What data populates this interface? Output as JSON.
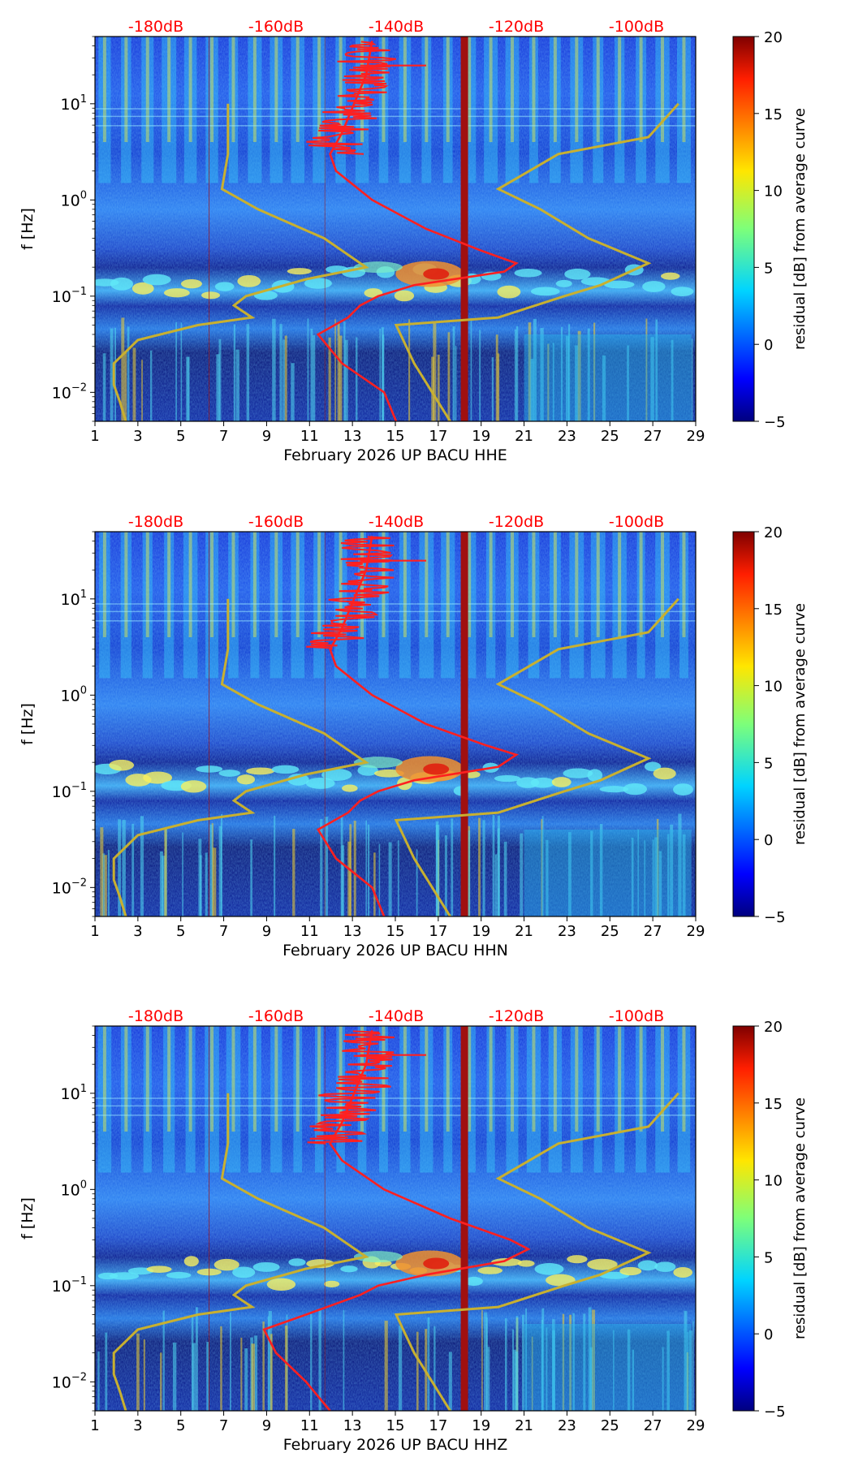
{
  "chart_data": [
    {
      "type": "heatmap",
      "title": "",
      "xlabel": "February 2026 UP BACU  HHE",
      "ylabel": "f [Hz]",
      "x_ticks": [
        "1",
        "3",
        "5",
        "7",
        "9",
        "11",
        "13",
        "15",
        "17",
        "19",
        "21",
        "23",
        "25",
        "27",
        "29"
      ],
      "x_range": [
        1,
        29
      ],
      "y_ticks": [
        {
          "value": 0.01,
          "base": "10",
          "exp": "−2"
        },
        {
          "value": 0.1,
          "base": "10",
          "exp": "−1"
        },
        {
          "value": 1,
          "base": "10",
          "exp": "0"
        },
        {
          "value": 10,
          "base": "10",
          "exp": "1"
        }
      ],
      "y_range": [
        0.005,
        50
      ],
      "y_scale": "log",
      "top_labels": [
        "-180dB",
        "-160dB",
        "-140dB",
        "-120dB",
        "-100dB"
      ],
      "colorbar": {
        "label": "residual [dB] from average curve",
        "ticks": [
          "−5",
          "0",
          "5",
          "10",
          "15",
          "20"
        ],
        "range": [
          -5,
          20
        ]
      },
      "gap_day": 18.2,
      "red_curve_psd": [
        {
          "f": 0.005,
          "db": -140
        },
        {
          "f": 0.01,
          "db": -142
        },
        {
          "f": 0.02,
          "db": -149
        },
        {
          "f": 0.04,
          "db": -153
        },
        {
          "f": 0.06,
          "db": -148
        },
        {
          "f": 0.08,
          "db": -146
        },
        {
          "f": 0.1,
          "db": -143
        },
        {
          "f": 0.13,
          "db": -137
        },
        {
          "f": 0.18,
          "db": -122
        },
        {
          "f": 0.22,
          "db": -120
        },
        {
          "f": 0.3,
          "db": -126
        },
        {
          "f": 0.5,
          "db": -135
        },
        {
          "f": 1,
          "db": -144
        },
        {
          "f": 2,
          "db": -150
        },
        {
          "f": 3,
          "db": -151
        },
        {
          "f": 5,
          "db": -149
        },
        {
          "f": 10,
          "db": -147
        },
        {
          "f": 20,
          "db": -145
        },
        {
          "f": 45,
          "db": -144
        }
      ],
      "yellow_curve_nlnm_nhnm": {
        "low": [
          {
            "f": 0.005,
            "db": -185
          },
          {
            "f": 0.008,
            "db": -186
          },
          {
            "f": 0.012,
            "db": -187
          },
          {
            "f": 0.02,
            "db": -187
          },
          {
            "f": 0.035,
            "db": -183
          },
          {
            "f": 0.05,
            "db": -173
          },
          {
            "f": 0.06,
            "db": -164
          },
          {
            "f": 0.08,
            "db": -167
          },
          {
            "f": 0.1,
            "db": -165
          },
          {
            "f": 0.15,
            "db": -155
          },
          {
            "f": 0.2,
            "db": -145
          },
          {
            "f": 0.4,
            "db": -152
          },
          {
            "f": 0.8,
            "db": -163
          },
          {
            "f": 1.3,
            "db": -169
          },
          {
            "f": 3,
            "db": -168
          },
          {
            "f": 10,
            "db": -168
          }
        ],
        "high": [
          {
            "f": 0.005,
            "db": -131
          },
          {
            "f": 0.01,
            "db": -134
          },
          {
            "f": 0.02,
            "db": -137
          },
          {
            "f": 0.05,
            "db": -140
          },
          {
            "f": 0.06,
            "db": -123
          },
          {
            "f": 0.1,
            "db": -112
          },
          {
            "f": 0.13,
            "db": -106
          },
          {
            "f": 0.22,
            "db": -98
          },
          {
            "f": 0.4,
            "db": -108
          },
          {
            "f": 0.8,
            "db": -116
          },
          {
            "f": 1.3,
            "db": -123
          },
          {
            "f": 3,
            "db": -113
          },
          {
            "f": 4.5,
            "db": -98
          },
          {
            "f": 10,
            "db": -93
          }
        ]
      }
    },
    {
      "type": "heatmap",
      "title": "",
      "xlabel": "February 2026 UP BACU  HHN",
      "ylabel": "f [Hz]",
      "x_ticks": [
        "1",
        "3",
        "5",
        "7",
        "9",
        "11",
        "13",
        "15",
        "17",
        "19",
        "21",
        "23",
        "25",
        "27",
        "29"
      ],
      "x_range": [
        1,
        29
      ],
      "y_ticks": [
        {
          "value": 0.01,
          "base": "10",
          "exp": "−2"
        },
        {
          "value": 0.1,
          "base": "10",
          "exp": "−1"
        },
        {
          "value": 1,
          "base": "10",
          "exp": "0"
        },
        {
          "value": 10,
          "base": "10",
          "exp": "1"
        }
      ],
      "y_range": [
        0.005,
        50
      ],
      "y_scale": "log",
      "top_labels": [
        "-180dB",
        "-160dB",
        "-140dB",
        "-120dB",
        "-100dB"
      ],
      "colorbar": {
        "label": "residual [dB] from average curve",
        "ticks": [
          "−5",
          "0",
          "5",
          "10",
          "15",
          "20"
        ],
        "range": [
          -5,
          20
        ]
      },
      "gap_day": 18.2,
      "red_curve_psd": [
        {
          "f": 0.005,
          "db": -142
        },
        {
          "f": 0.01,
          "db": -144
        },
        {
          "f": 0.02,
          "db": -150
        },
        {
          "f": 0.04,
          "db": -153
        },
        {
          "f": 0.06,
          "db": -148
        },
        {
          "f": 0.08,
          "db": -146
        },
        {
          "f": 0.1,
          "db": -143
        },
        {
          "f": 0.13,
          "db": -137
        },
        {
          "f": 0.18,
          "db": -123
        },
        {
          "f": 0.24,
          "db": -120
        },
        {
          "f": 0.3,
          "db": -125
        },
        {
          "f": 0.5,
          "db": -135
        },
        {
          "f": 1,
          "db": -144
        },
        {
          "f": 2,
          "db": -150
        },
        {
          "f": 3,
          "db": -151
        },
        {
          "f": 5,
          "db": -149
        },
        {
          "f": 10,
          "db": -147
        },
        {
          "f": 20,
          "db": -145
        },
        {
          "f": 45,
          "db": -144
        }
      ],
      "yellow_curve_nlnm_nhnm": {
        "low": [
          {
            "f": 0.005,
            "db": -185
          },
          {
            "f": 0.008,
            "db": -186
          },
          {
            "f": 0.012,
            "db": -187
          },
          {
            "f": 0.02,
            "db": -187
          },
          {
            "f": 0.035,
            "db": -183
          },
          {
            "f": 0.05,
            "db": -173
          },
          {
            "f": 0.06,
            "db": -164
          },
          {
            "f": 0.08,
            "db": -167
          },
          {
            "f": 0.1,
            "db": -165
          },
          {
            "f": 0.15,
            "db": -155
          },
          {
            "f": 0.2,
            "db": -145
          },
          {
            "f": 0.4,
            "db": -152
          },
          {
            "f": 0.8,
            "db": -163
          },
          {
            "f": 1.3,
            "db": -169
          },
          {
            "f": 3,
            "db": -168
          },
          {
            "f": 10,
            "db": -168
          }
        ],
        "high": [
          {
            "f": 0.005,
            "db": -131
          },
          {
            "f": 0.01,
            "db": -134
          },
          {
            "f": 0.02,
            "db": -137
          },
          {
            "f": 0.05,
            "db": -140
          },
          {
            "f": 0.06,
            "db": -123
          },
          {
            "f": 0.1,
            "db": -112
          },
          {
            "f": 0.13,
            "db": -106
          },
          {
            "f": 0.22,
            "db": -98
          },
          {
            "f": 0.4,
            "db": -108
          },
          {
            "f": 0.8,
            "db": -116
          },
          {
            "f": 1.3,
            "db": -123
          },
          {
            "f": 3,
            "db": -113
          },
          {
            "f": 4.5,
            "db": -98
          },
          {
            "f": 10,
            "db": -93
          }
        ]
      }
    },
    {
      "type": "heatmap",
      "title": "",
      "xlabel": "February 2026 UP BACU  HHZ",
      "ylabel": "f [Hz]",
      "x_ticks": [
        "1",
        "3",
        "5",
        "7",
        "9",
        "11",
        "13",
        "15",
        "17",
        "19",
        "21",
        "23",
        "25",
        "27",
        "29"
      ],
      "x_range": [
        1,
        29
      ],
      "y_ticks": [
        {
          "value": 0.01,
          "base": "10",
          "exp": "−2"
        },
        {
          "value": 0.1,
          "base": "10",
          "exp": "−1"
        },
        {
          "value": 1,
          "base": "10",
          "exp": "0"
        },
        {
          "value": 10,
          "base": "10",
          "exp": "1"
        }
      ],
      "y_range": [
        0.005,
        50
      ],
      "y_scale": "log",
      "top_labels": [
        "-180dB",
        "-160dB",
        "-140dB",
        "-120dB",
        "-100dB"
      ],
      "colorbar": {
        "label": "residual [dB] from average curve",
        "ticks": [
          "−5",
          "0",
          "5",
          "10",
          "15",
          "20"
        ],
        "range": [
          -5,
          20
        ]
      },
      "gap_day": 18.2,
      "red_curve_psd": [
        {
          "f": 0.005,
          "db": -151
        },
        {
          "f": 0.01,
          "db": -155
        },
        {
          "f": 0.02,
          "db": -160
        },
        {
          "f": 0.035,
          "db": -162
        },
        {
          "f": 0.05,
          "db": -155
        },
        {
          "f": 0.08,
          "db": -146
        },
        {
          "f": 0.1,
          "db": -143
        },
        {
          "f": 0.13,
          "db": -135
        },
        {
          "f": 0.18,
          "db": -122
        },
        {
          "f": 0.24,
          "db": -118
        },
        {
          "f": 0.3,
          "db": -121
        },
        {
          "f": 0.5,
          "db": -131
        },
        {
          "f": 1,
          "db": -142
        },
        {
          "f": 2,
          "db": -149
        },
        {
          "f": 3,
          "db": -151
        },
        {
          "f": 5,
          "db": -149
        },
        {
          "f": 10,
          "db": -147
        },
        {
          "f": 20,
          "db": -145
        },
        {
          "f": 45,
          "db": -144
        }
      ],
      "yellow_curve_nlnm_nhnm": {
        "low": [
          {
            "f": 0.005,
            "db": -185
          },
          {
            "f": 0.008,
            "db": -186
          },
          {
            "f": 0.012,
            "db": -187
          },
          {
            "f": 0.02,
            "db": -187
          },
          {
            "f": 0.035,
            "db": -183
          },
          {
            "f": 0.05,
            "db": -173
          },
          {
            "f": 0.06,
            "db": -164
          },
          {
            "f": 0.08,
            "db": -167
          },
          {
            "f": 0.1,
            "db": -165
          },
          {
            "f": 0.15,
            "db": -155
          },
          {
            "f": 0.2,
            "db": -145
          },
          {
            "f": 0.4,
            "db": -152
          },
          {
            "f": 0.8,
            "db": -163
          },
          {
            "f": 1.3,
            "db": -169
          },
          {
            "f": 3,
            "db": -168
          },
          {
            "f": 10,
            "db": -168
          }
        ],
        "high": [
          {
            "f": 0.005,
            "db": -131
          },
          {
            "f": 0.01,
            "db": -134
          },
          {
            "f": 0.02,
            "db": -137
          },
          {
            "f": 0.05,
            "db": -140
          },
          {
            "f": 0.06,
            "db": -123
          },
          {
            "f": 0.1,
            "db": -112
          },
          {
            "f": 0.13,
            "db": -106
          },
          {
            "f": 0.22,
            "db": -98
          },
          {
            "f": 0.4,
            "db": -108
          },
          {
            "f": 0.8,
            "db": -116
          },
          {
            "f": 1.3,
            "db": -123
          },
          {
            "f": 3,
            "db": -113
          },
          {
            "f": 4.5,
            "db": -98
          },
          {
            "f": 10,
            "db": -93
          }
        ]
      }
    }
  ],
  "colors": {
    "psd_curve": "#ff2020",
    "model_curve": "#c8b030",
    "top_label": "#ff0000",
    "gap": "#a01010",
    "axis": "#000000"
  }
}
